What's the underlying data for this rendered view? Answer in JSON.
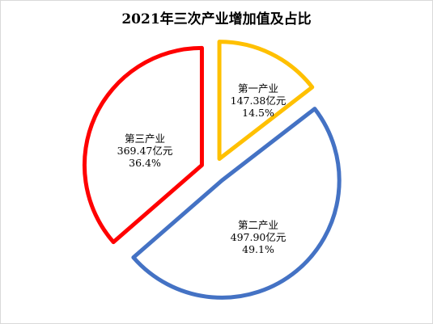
{
  "chart_data": {
    "type": "pie",
    "title": "2021年三次产业增加值及占比",
    "legend": "none",
    "slices": [
      {
        "name": "第一产业",
        "value_text": "147.38亿元",
        "value": 147.38,
        "percent_text": "14.5%",
        "percent": 14.5,
        "color": "#FFC000",
        "exploded": true
      },
      {
        "name": "第二产业",
        "value_text": "497.90亿元",
        "value": 497.9,
        "percent_text": "49.1%",
        "percent": 49.1,
        "color": "#4472C4",
        "exploded": true
      },
      {
        "name": "第三产业",
        "value_text": "369.47亿元",
        "value": 369.47,
        "percent_text": "36.4%",
        "percent": 36.4,
        "color": "#FF0000",
        "exploded": true
      }
    ],
    "slice_fill": "#FFFFFF"
  }
}
